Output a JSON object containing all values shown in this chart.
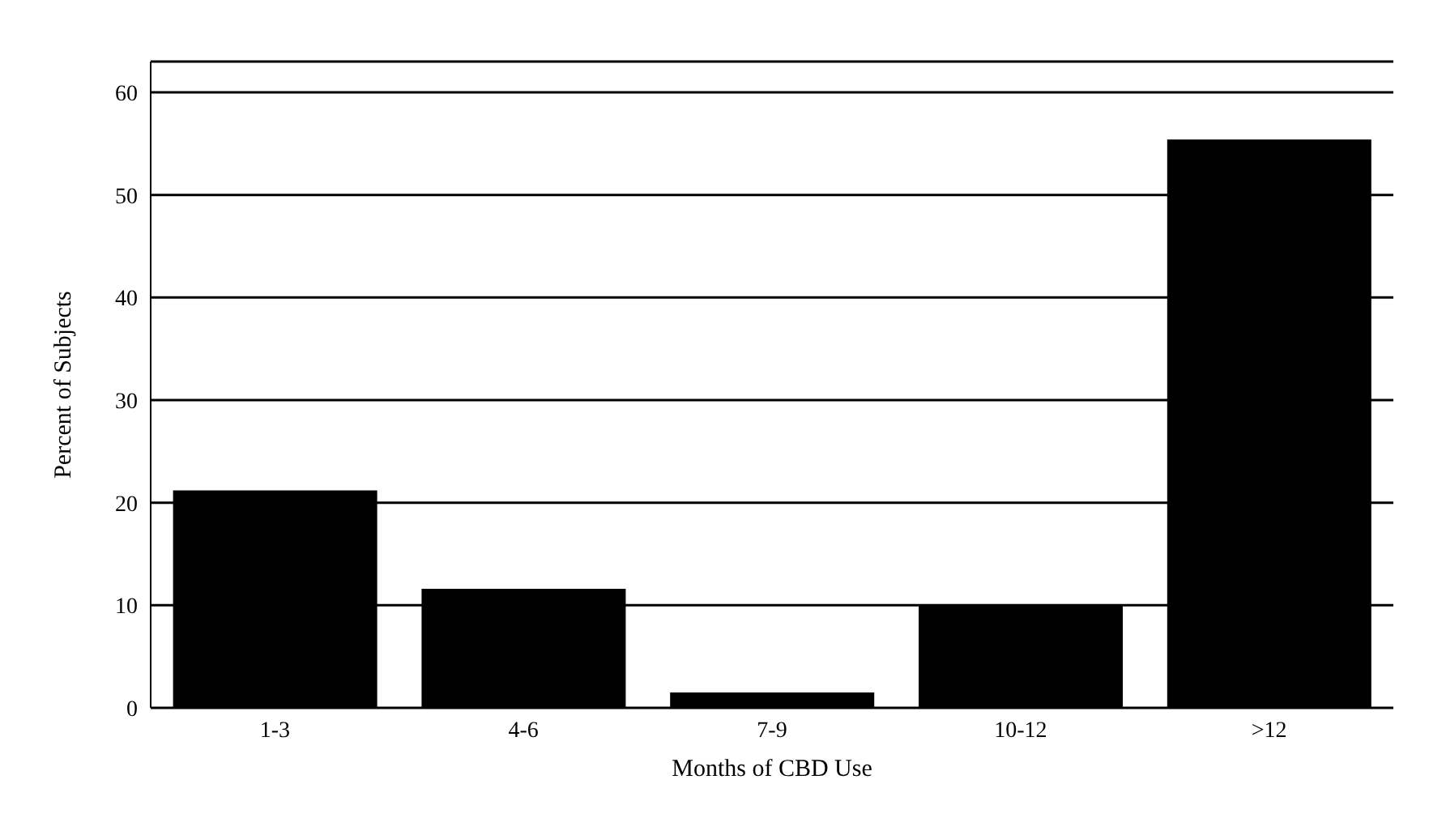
{
  "chart_data": {
    "type": "bar",
    "xlabel": "Months of CBD Use",
    "ylabel": "Percent of Subjects",
    "categories": [
      "1-3",
      "4-6",
      "7-9",
      "10-12",
      ">12"
    ],
    "values": [
      21.2,
      11.6,
      1.5,
      10.1,
      55.4
    ],
    "color": "#000000",
    "ylim": [
      0,
      63
    ],
    "yticks": [
      0,
      10,
      20,
      30,
      40,
      50,
      60
    ],
    "grid": "y",
    "legend": false
  }
}
